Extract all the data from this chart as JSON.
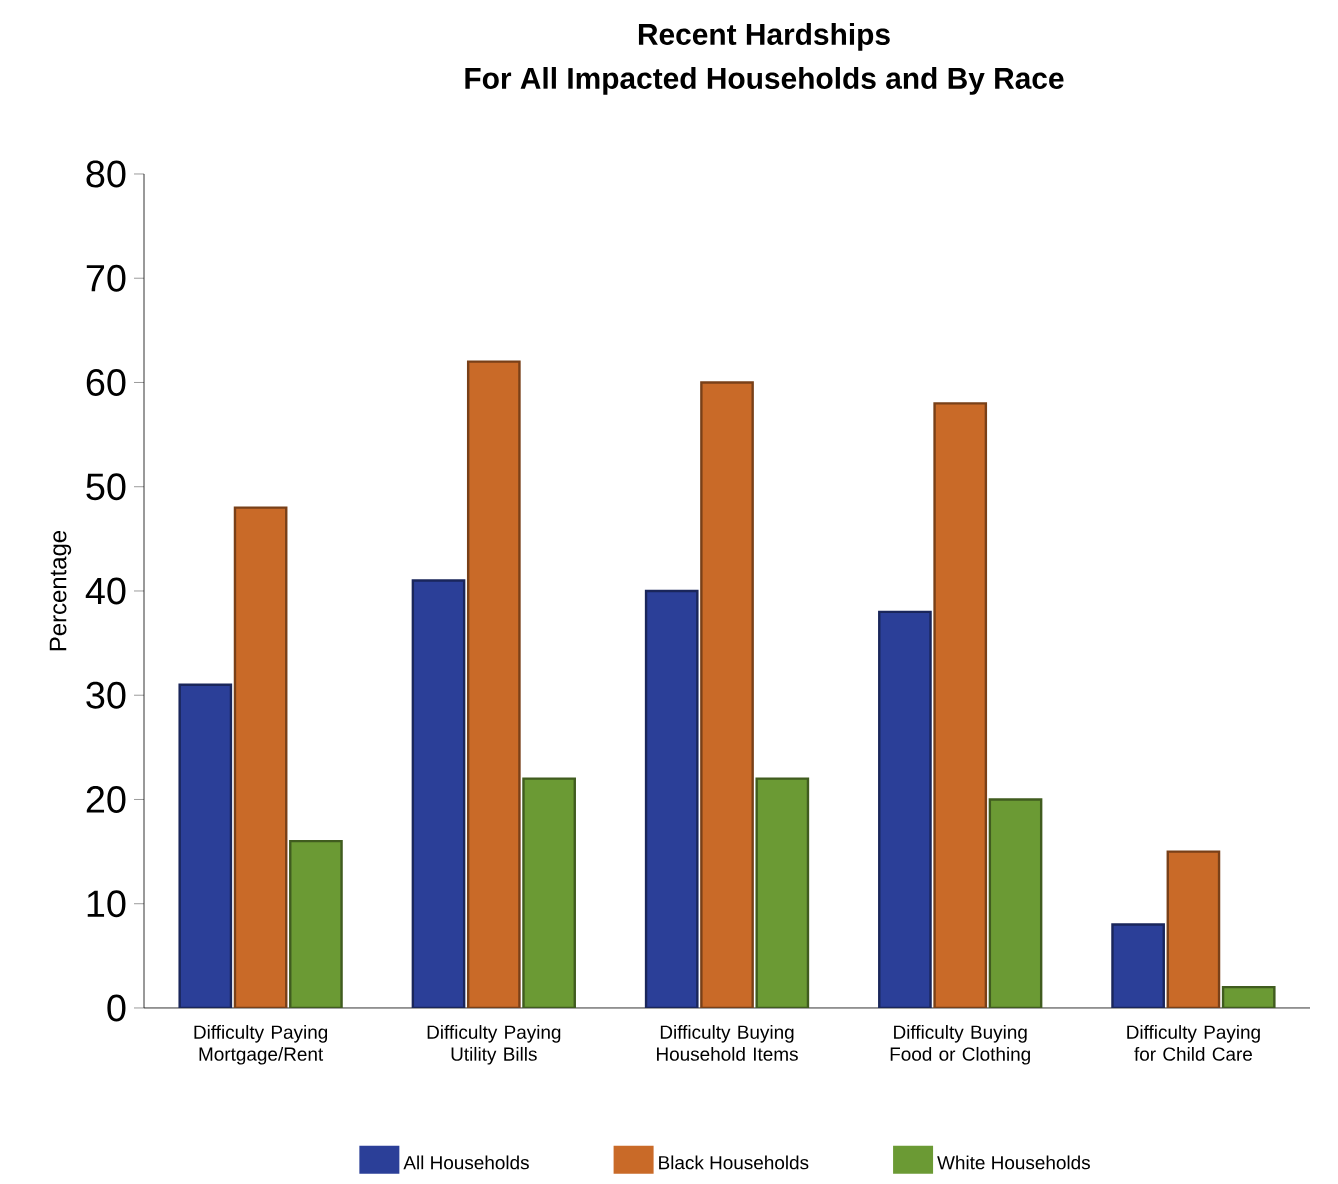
{
  "chart_data": {
    "type": "bar",
    "title": "Recent Hardships",
    "subtitle": "For All Impacted Households and By Race",
    "ylabel": "Percentage",
    "categories": [
      "Difficulty Paying Mortgage/Rent",
      "Difficulty Paying Utility Bills",
      "Difficulty Buying Household Items",
      "Difficulty Buying Food or Clothing",
      "Difficulty Paying for Child Care"
    ],
    "series": [
      {
        "name": "All Households",
        "color": "#2b3f98",
        "values": [
          31,
          41,
          40,
          38,
          8
        ]
      },
      {
        "name": "Black Households",
        "color": "#c96a28",
        "values": [
          48,
          62,
          60,
          58,
          15
        ]
      },
      {
        "name": "White Households",
        "color": "#6b9a34",
        "values": [
          16,
          22,
          22,
          20,
          2
        ]
      }
    ],
    "ylim": [
      0,
      80
    ],
    "yticks": [
      0,
      10,
      20,
      30,
      40,
      50,
      60,
      70,
      80
    ],
    "grid": false,
    "legend": "bottom"
  }
}
